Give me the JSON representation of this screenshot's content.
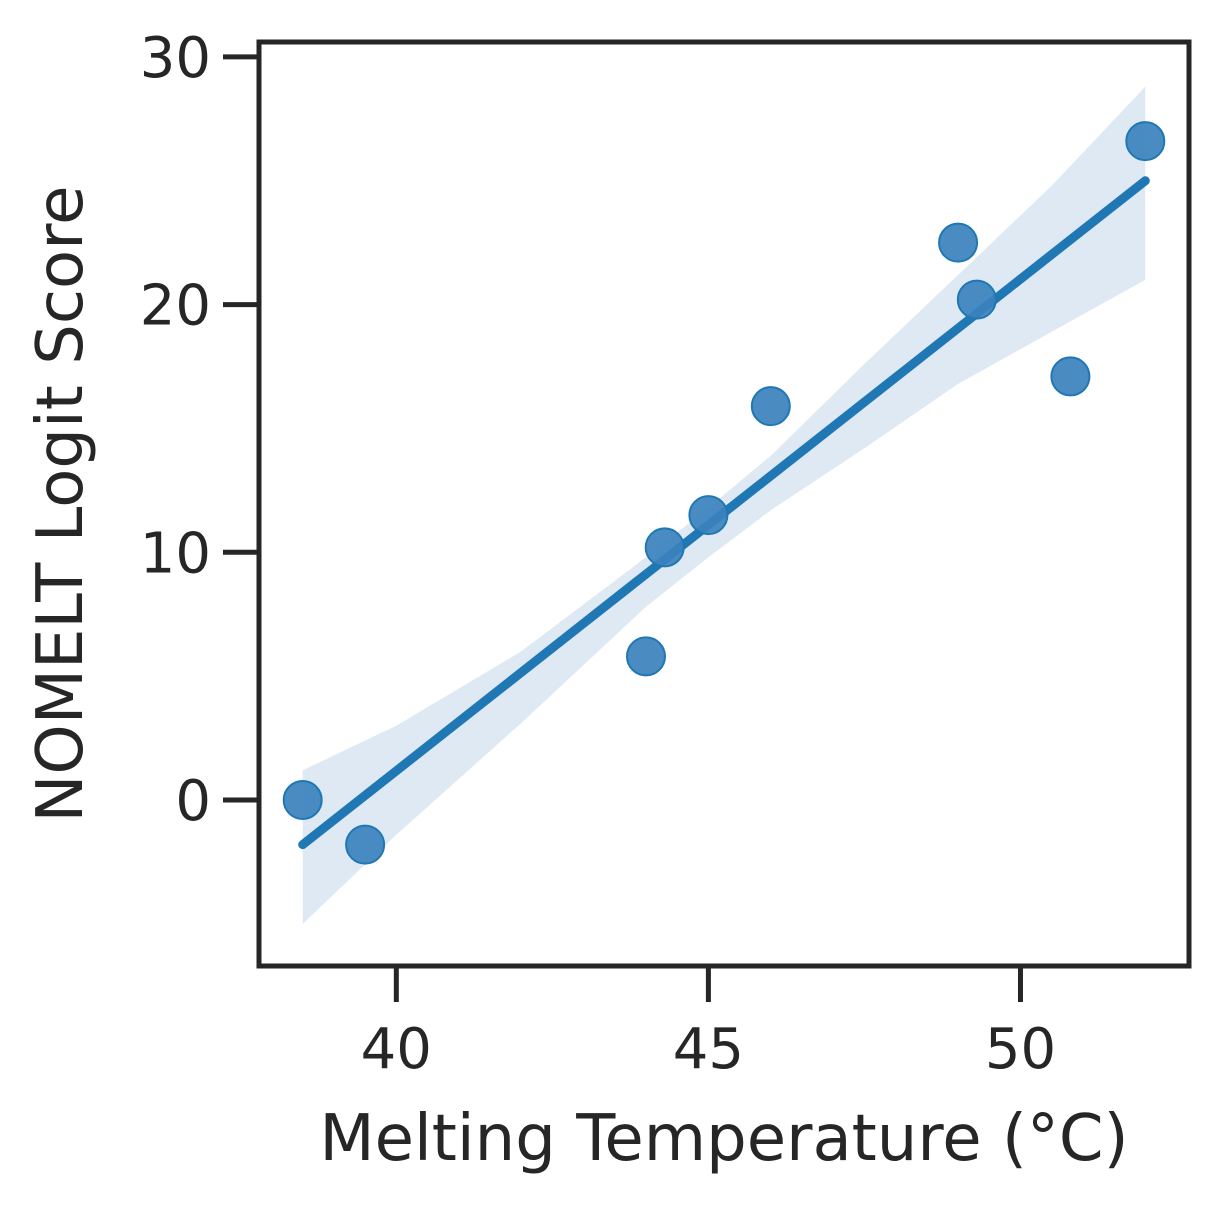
{
  "chart_data": {
    "type": "scatter",
    "title": "",
    "xlabel": "Melting Temperature (°C)",
    "ylabel": "NOMELT Logit Score",
    "xlim": [
      37.8,
      52.7
    ],
    "ylim": [
      -6.7,
      30.6
    ],
    "xticks": [
      40,
      45,
      50
    ],
    "xtick_labels": [
      "40",
      "45",
      "50"
    ],
    "yticks": [
      0,
      10,
      20,
      30
    ],
    "ytick_labels": [
      "0",
      "10",
      "20",
      "30"
    ],
    "grid": false,
    "legend": "none",
    "series": [
      {
        "points": [
          {
            "x": 38.5,
            "y": 0.0
          },
          {
            "x": 39.5,
            "y": -1.8
          },
          {
            "x": 44.0,
            "y": 5.8
          },
          {
            "x": 44.3,
            "y": 10.2
          },
          {
            "x": 45.0,
            "y": 11.5
          },
          {
            "x": 46.0,
            "y": 15.9
          },
          {
            "x": 49.0,
            "y": 22.5
          },
          {
            "x": 49.3,
            "y": 20.2
          },
          {
            "x": 50.8,
            "y": 17.1
          },
          {
            "x": 52.0,
            "y": 26.6
          }
        ]
      }
    ],
    "regression": {
      "line": [
        [
          38.5,
          -1.8
        ],
        [
          52.0,
          25.0
        ]
      ],
      "ci_band": [
        {
          "x": 38.5,
          "lo": -5.0,
          "hi": 1.2
        },
        {
          "x": 40.0,
          "lo": -1.4,
          "hi": 3.0
        },
        {
          "x": 42.0,
          "lo": 3.1,
          "hi": 6.0
        },
        {
          "x": 44.0,
          "lo": 7.8,
          "hi": 9.8
        },
        {
          "x": 45.0,
          "lo": 9.8,
          "hi": 11.8
        },
        {
          "x": 46.0,
          "lo": 11.7,
          "hi": 13.9
        },
        {
          "x": 47.5,
          "lo": 14.2,
          "hi": 17.6
        },
        {
          "x": 49.0,
          "lo": 16.8,
          "hi": 21.2
        },
        {
          "x": 50.5,
          "lo": 18.9,
          "hi": 24.8
        },
        {
          "x": 52.0,
          "lo": 21.0,
          "hi": 28.8
        }
      ]
    },
    "colors": {
      "point": "#3b82bd",
      "line": "#1f77b4",
      "band": "#dce8f3",
      "axis": "#262626"
    }
  }
}
